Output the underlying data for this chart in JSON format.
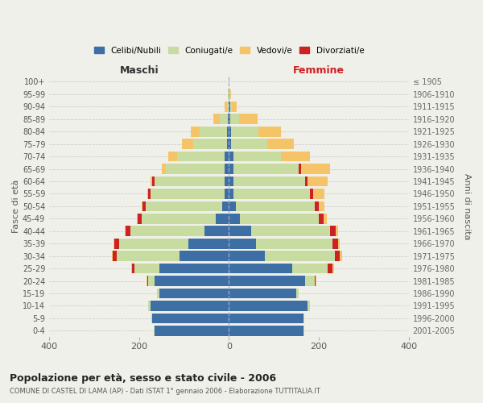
{
  "age_groups": [
    "0-4",
    "5-9",
    "10-14",
    "15-19",
    "20-24",
    "25-29",
    "30-34",
    "35-39",
    "40-44",
    "45-49",
    "50-54",
    "55-59",
    "60-64",
    "65-69",
    "70-74",
    "75-79",
    "80-84",
    "85-89",
    "90-94",
    "95-99",
    "100+"
  ],
  "birth_years": [
    "2001-2005",
    "1996-2000",
    "1991-1995",
    "1986-1990",
    "1981-1985",
    "1976-1980",
    "1971-1975",
    "1966-1970",
    "1961-1965",
    "1956-1960",
    "1951-1955",
    "1946-1950",
    "1941-1945",
    "1936-1940",
    "1931-1935",
    "1926-1930",
    "1921-1925",
    "1916-1920",
    "1911-1915",
    "1906-1910",
    "≤ 1905"
  ],
  "males": {
    "celibi": [
      165,
      170,
      175,
      155,
      165,
      155,
      110,
      90,
      55,
      30,
      15,
      10,
      10,
      10,
      10,
      5,
      5,
      2,
      0,
      0,
      0
    ],
    "coniugati": [
      2,
      2,
      5,
      5,
      15,
      55,
      140,
      155,
      165,
      165,
      170,
      165,
      155,
      130,
      105,
      75,
      60,
      18,
      5,
      2,
      1
    ],
    "vedovi": [
      0,
      0,
      0,
      0,
      2,
      2,
      2,
      2,
      2,
      2,
      2,
      2,
      5,
      10,
      20,
      25,
      20,
      15,
      5,
      1,
      0
    ],
    "divorziati": [
      0,
      0,
      0,
      0,
      2,
      5,
      8,
      10,
      10,
      8,
      7,
      5,
      5,
      0,
      0,
      0,
      0,
      0,
      0,
      0,
      0
    ]
  },
  "females": {
    "nubili": [
      165,
      165,
      175,
      150,
      170,
      140,
      80,
      60,
      50,
      25,
      15,
      10,
      10,
      10,
      10,
      5,
      5,
      3,
      2,
      0,
      0
    ],
    "coniugate": [
      2,
      3,
      5,
      5,
      20,
      80,
      155,
      170,
      175,
      175,
      175,
      170,
      160,
      145,
      105,
      80,
      60,
      20,
      5,
      2,
      1
    ],
    "vedove": [
      0,
      0,
      0,
      0,
      2,
      4,
      4,
      4,
      6,
      8,
      12,
      25,
      45,
      65,
      65,
      60,
      50,
      40,
      10,
      2,
      0
    ],
    "divorziate": [
      0,
      0,
      0,
      0,
      2,
      10,
      12,
      12,
      12,
      10,
      10,
      8,
      5,
      5,
      0,
      0,
      0,
      0,
      0,
      0,
      0
    ]
  },
  "colors": {
    "celibi": "#3d6fa5",
    "coniugati": "#c8dca2",
    "vedovi": "#f5c468",
    "divorziati": "#cc2222"
  },
  "xlim": 400,
  "title_main": "Popolazione per età, sesso e stato civile - 2006",
  "title_sub": "COMUNE DI CASTEL DI LAMA (AP) - Dati ISTAT 1° gennaio 2006 - Elaborazione TUTTITALIA.IT",
  "ylabel_left": "Fasce di età",
  "ylabel_right": "Anni di nascita",
  "xlabel_left": "Maschi",
  "xlabel_right": "Femmine",
  "bg_color": "#f0f0eb",
  "legend_labels": [
    "Celibi/Nubili",
    "Coniugati/e",
    "Vedovi/e",
    "Divorziati/e"
  ],
  "bar_height": 0.82
}
